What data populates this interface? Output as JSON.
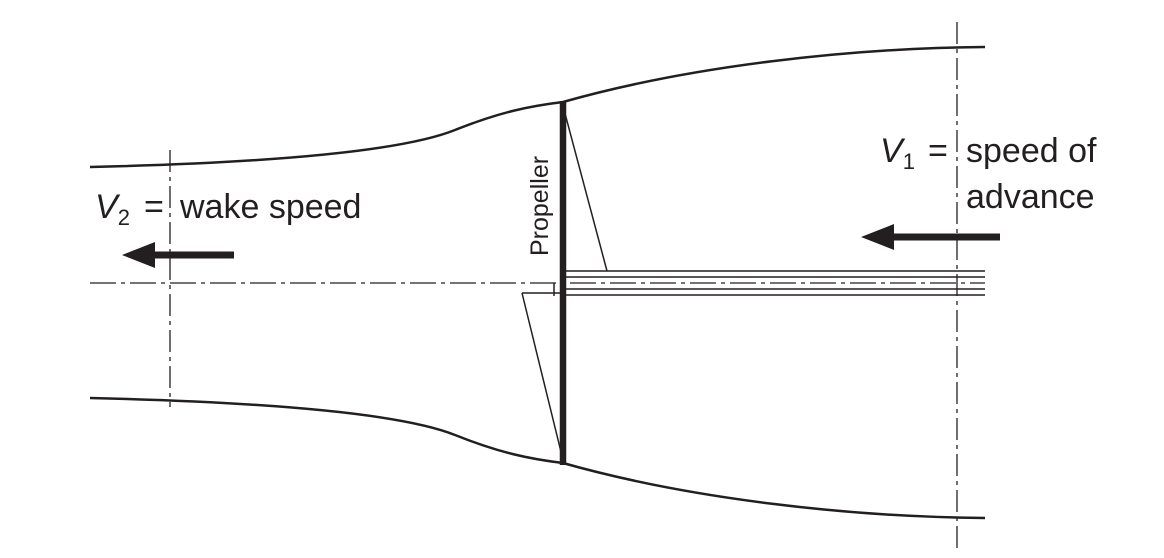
{
  "labels": {
    "v2_symbol": "V",
    "v2_subscript": "2",
    "v2_eq": "=",
    "v2_text": "wake speed",
    "v1_symbol": "V",
    "v1_subscript": "1",
    "v1_eq": "=",
    "v1_line1": "speed of",
    "v1_line2": "advance",
    "propeller": "Propeller"
  },
  "colors": {
    "ink": "#231f20",
    "background": "#ffffff"
  },
  "icons": {
    "wake_arrow": "arrow-left",
    "advance_arrow": "arrow-left"
  }
}
